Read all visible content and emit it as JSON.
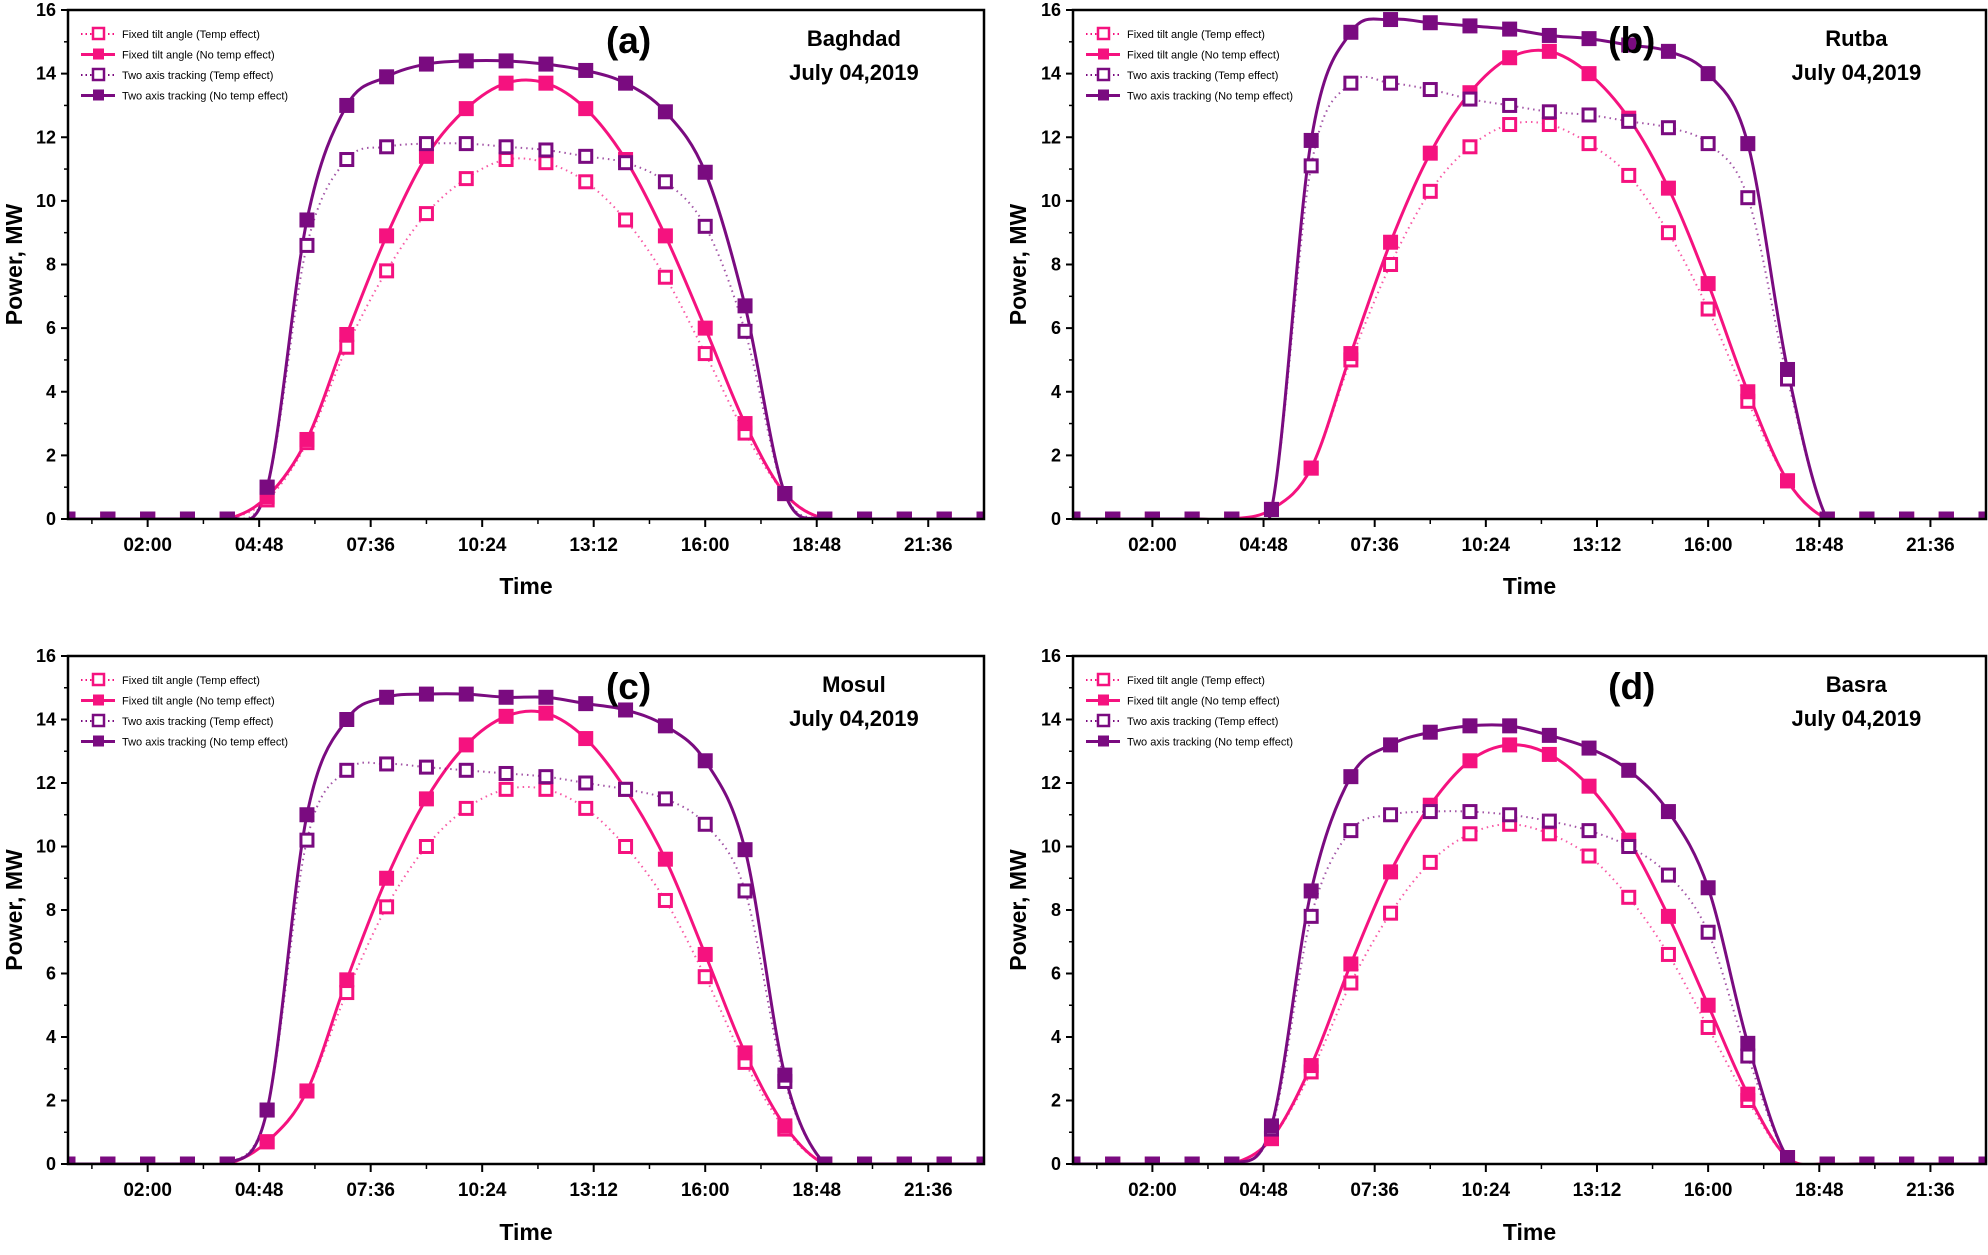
{
  "colors": {
    "fixed": "#f5127f",
    "two_axis": "#7a0b80",
    "axis": "#000000"
  },
  "chart_data": [
    {
      "type": "line",
      "panel_label": "(a)",
      "location": "Baghdad",
      "date": "July 04,2019",
      "xlabel": "Time",
      "ylabel": "Power, MW",
      "xlim_hours": [
        0,
        23
      ],
      "ylim": [
        0,
        16
      ],
      "x_tick_labels": [
        "02:00",
        "04:48",
        "07:36",
        "10:24",
        "13:12",
        "16:00",
        "18:48",
        "21:36"
      ],
      "y_tick_labels": [
        "0",
        "2",
        "4",
        "6",
        "8",
        "10",
        "12",
        "14",
        "16"
      ],
      "legend_position": "top-left",
      "x_hours": [
        0,
        1,
        2,
        3,
        4,
        5,
        6,
        7,
        8,
        9,
        10,
        11,
        12,
        13,
        14,
        15,
        16,
        17,
        18,
        19,
        20,
        21,
        22,
        23
      ],
      "series": [
        {
          "name": "Fixed tilt angle (Temp effect)",
          "color": "fixed",
          "style": "dotted",
          "marker": "open-square",
          "values": [
            0,
            0,
            0,
            0,
            0,
            0.6,
            2.4,
            5.4,
            7.8,
            9.6,
            10.7,
            11.3,
            11.2,
            10.6,
            9.4,
            7.6,
            5.2,
            2.7,
            0.8,
            0,
            0,
            0,
            0,
            0
          ]
        },
        {
          "name": "Fixed tilt angle (No temp effect)",
          "color": "fixed",
          "style": "solid",
          "marker": "filled-square",
          "values": [
            0,
            0,
            0,
            0,
            0,
            0.7,
            2.5,
            5.8,
            8.9,
            11.4,
            12.9,
            13.7,
            13.7,
            12.9,
            11.3,
            8.9,
            6.0,
            3.0,
            0.8,
            0,
            0,
            0,
            0,
            0
          ]
        },
        {
          "name": "Two axis tracking (Temp effect)",
          "color": "two_axis",
          "style": "dotted",
          "marker": "open-square",
          "values": [
            0,
            0,
            0,
            0,
            0,
            1.0,
            8.6,
            11.3,
            11.7,
            11.8,
            11.8,
            11.7,
            11.6,
            11.4,
            11.2,
            10.6,
            9.2,
            5.9,
            0.8,
            0,
            0,
            0,
            0,
            0
          ]
        },
        {
          "name": "Two axis tracking (No temp effect)",
          "color": "two_axis",
          "style": "solid",
          "marker": "filled-square",
          "values": [
            0,
            0,
            0,
            0,
            0,
            1.0,
            9.4,
            13.0,
            13.9,
            14.3,
            14.4,
            14.4,
            14.3,
            14.1,
            13.7,
            12.8,
            10.9,
            6.7,
            0.8,
            0,
            0,
            0,
            0,
            0
          ]
        }
      ]
    },
    {
      "type": "line",
      "panel_label": "(b)",
      "location": "Rutba",
      "date": "July 04,2019",
      "xlabel": "Time",
      "ylabel": "Power, MW",
      "xlim_hours": [
        0,
        23
      ],
      "ylim": [
        0,
        16
      ],
      "x_tick_labels": [
        "02:00",
        "04:48",
        "07:36",
        "10:24",
        "13:12",
        "16:00",
        "18:48",
        "21:36"
      ],
      "y_tick_labels": [
        "0",
        "2",
        "4",
        "6",
        "8",
        "10",
        "12",
        "14",
        "16"
      ],
      "legend_position": "top-left",
      "x_hours": [
        0,
        1,
        2,
        3,
        4,
        5,
        6,
        7,
        8,
        9,
        10,
        11,
        12,
        13,
        14,
        15,
        16,
        17,
        18,
        19,
        20,
        21,
        22,
        23
      ],
      "series": [
        {
          "name": "Fixed tilt angle (Temp effect)",
          "color": "fixed",
          "style": "dotted",
          "marker": "open-square",
          "values": [
            0,
            0,
            0,
            0,
            0,
            0.3,
            1.6,
            5.0,
            8.0,
            10.3,
            11.7,
            12.4,
            12.4,
            11.8,
            10.8,
            9.0,
            6.6,
            3.7,
            1.2,
            0,
            0,
            0,
            0,
            0
          ]
        },
        {
          "name": "Fixed tilt angle (No temp effect)",
          "color": "fixed",
          "style": "solid",
          "marker": "filled-square",
          "values": [
            0,
            0,
            0,
            0,
            0,
            0.3,
            1.6,
            5.2,
            8.7,
            11.5,
            13.4,
            14.5,
            14.7,
            14.0,
            12.6,
            10.4,
            7.4,
            4.0,
            1.2,
            0,
            0,
            0,
            0,
            0
          ]
        },
        {
          "name": "Two axis tracking (Temp effect)",
          "color": "two_axis",
          "style": "dotted",
          "marker": "open-square",
          "values": [
            0,
            0,
            0,
            0,
            0,
            0.3,
            11.1,
            13.7,
            13.7,
            13.5,
            13.2,
            13.0,
            12.8,
            12.7,
            12.5,
            12.3,
            11.8,
            10.1,
            4.4,
            0,
            0,
            0,
            0,
            0
          ]
        },
        {
          "name": "Two axis tracking (No temp effect)",
          "color": "two_axis",
          "style": "solid",
          "marker": "filled-square",
          "values": [
            0,
            0,
            0,
            0,
            0,
            0.3,
            11.9,
            15.3,
            15.7,
            15.6,
            15.5,
            15.4,
            15.2,
            15.1,
            14.9,
            14.7,
            14.0,
            11.8,
            4.7,
            0,
            0,
            0,
            0,
            0
          ]
        }
      ]
    },
    {
      "type": "line",
      "panel_label": "(c)",
      "location": "Mosul",
      "date": "July 04,2019",
      "xlabel": "Time",
      "ylabel": "Power, MW",
      "xlim_hours": [
        0,
        23
      ],
      "ylim": [
        0,
        16
      ],
      "x_tick_labels": [
        "02:00",
        "04:48",
        "07:36",
        "10:24",
        "13:12",
        "16:00",
        "18:48",
        "21:36"
      ],
      "y_tick_labels": [
        "0",
        "2",
        "4",
        "6",
        "8",
        "10",
        "12",
        "14",
        "16"
      ],
      "legend_position": "top-left",
      "x_hours": [
        0,
        1,
        2,
        3,
        4,
        5,
        6,
        7,
        8,
        9,
        10,
        11,
        12,
        13,
        14,
        15,
        16,
        17,
        18,
        19,
        20,
        21,
        22,
        23
      ],
      "series": [
        {
          "name": "Fixed tilt angle (Temp effect)",
          "color": "fixed",
          "style": "dotted",
          "marker": "open-square",
          "values": [
            0,
            0,
            0,
            0,
            0,
            0.7,
            2.3,
            5.4,
            8.1,
            10.0,
            11.2,
            11.8,
            11.8,
            11.2,
            10.0,
            8.3,
            5.9,
            3.2,
            1.1,
            0,
            0,
            0,
            0,
            0
          ]
        },
        {
          "name": "Fixed tilt angle (No temp effect)",
          "color": "fixed",
          "style": "solid",
          "marker": "filled-square",
          "values": [
            0,
            0,
            0,
            0,
            0,
            0.7,
            2.3,
            5.8,
            9.0,
            11.5,
            13.2,
            14.1,
            14.2,
            13.4,
            11.8,
            9.6,
            6.6,
            3.5,
            1.2,
            0,
            0,
            0,
            0,
            0
          ]
        },
        {
          "name": "Two axis tracking (Temp effect)",
          "color": "two_axis",
          "style": "dotted",
          "marker": "open-square",
          "values": [
            0,
            0,
            0,
            0,
            0,
            1.7,
            10.2,
            12.4,
            12.6,
            12.5,
            12.4,
            12.3,
            12.2,
            12.0,
            11.8,
            11.5,
            10.7,
            8.6,
            2.6,
            0,
            0,
            0,
            0,
            0
          ]
        },
        {
          "name": "Two axis tracking (No temp effect)",
          "color": "two_axis",
          "style": "solid",
          "marker": "filled-square",
          "values": [
            0,
            0,
            0,
            0,
            0,
            1.7,
            11.0,
            14.0,
            14.7,
            14.8,
            14.8,
            14.7,
            14.7,
            14.5,
            14.3,
            13.8,
            12.7,
            9.9,
            2.8,
            0,
            0,
            0,
            0,
            0
          ]
        }
      ]
    },
    {
      "type": "line",
      "panel_label": "(d)",
      "location": "Basra",
      "date": "July 04,2019",
      "xlabel": "Time",
      "ylabel": "Power, MW",
      "xlim_hours": [
        0,
        23
      ],
      "ylim": [
        0,
        16
      ],
      "x_tick_labels": [
        "02:00",
        "04:48",
        "07:36",
        "10:24",
        "13:12",
        "16:00",
        "18:48",
        "21:36"
      ],
      "y_tick_labels": [
        "0",
        "2",
        "4",
        "6",
        "8",
        "10",
        "12",
        "14",
        "16"
      ],
      "legend_position": "top-left",
      "x_hours": [
        0,
        1,
        2,
        3,
        4,
        5,
        6,
        7,
        8,
        9,
        10,
        11,
        12,
        13,
        14,
        15,
        16,
        17,
        18,
        19,
        20,
        21,
        22,
        23
      ],
      "series": [
        {
          "name": "Fixed tilt angle (Temp effect)",
          "color": "fixed",
          "style": "dotted",
          "marker": "open-square",
          "values": [
            0,
            0,
            0,
            0,
            0,
            0.8,
            2.9,
            5.7,
            7.9,
            9.5,
            10.4,
            10.7,
            10.4,
            9.7,
            8.4,
            6.6,
            4.3,
            2.0,
            0.2,
            0,
            0,
            0,
            0,
            0
          ]
        },
        {
          "name": "Fixed tilt angle (No temp effect)",
          "color": "fixed",
          "style": "solid",
          "marker": "filled-square",
          "values": [
            0,
            0,
            0,
            0,
            0,
            0.8,
            3.1,
            6.3,
            9.2,
            11.3,
            12.7,
            13.2,
            12.9,
            11.9,
            10.2,
            7.8,
            5.0,
            2.2,
            0.2,
            0,
            0,
            0,
            0,
            0
          ]
        },
        {
          "name": "Two axis tracking (Temp effect)",
          "color": "two_axis",
          "style": "dotted",
          "marker": "open-square",
          "values": [
            0,
            0,
            0,
            0,
            0,
            1.1,
            7.8,
            10.5,
            11.0,
            11.1,
            11.1,
            11.0,
            10.8,
            10.5,
            10.0,
            9.1,
            7.3,
            3.4,
            0.2,
            0,
            0,
            0,
            0,
            0
          ]
        },
        {
          "name": "Two axis tracking (No temp effect)",
          "color": "two_axis",
          "style": "solid",
          "marker": "filled-square",
          "values": [
            0,
            0,
            0,
            0,
            0,
            1.2,
            8.6,
            12.2,
            13.2,
            13.6,
            13.8,
            13.8,
            13.5,
            13.1,
            12.4,
            11.1,
            8.7,
            3.8,
            0.2,
            0,
            0,
            0,
            0,
            0
          ]
        }
      ]
    }
  ]
}
